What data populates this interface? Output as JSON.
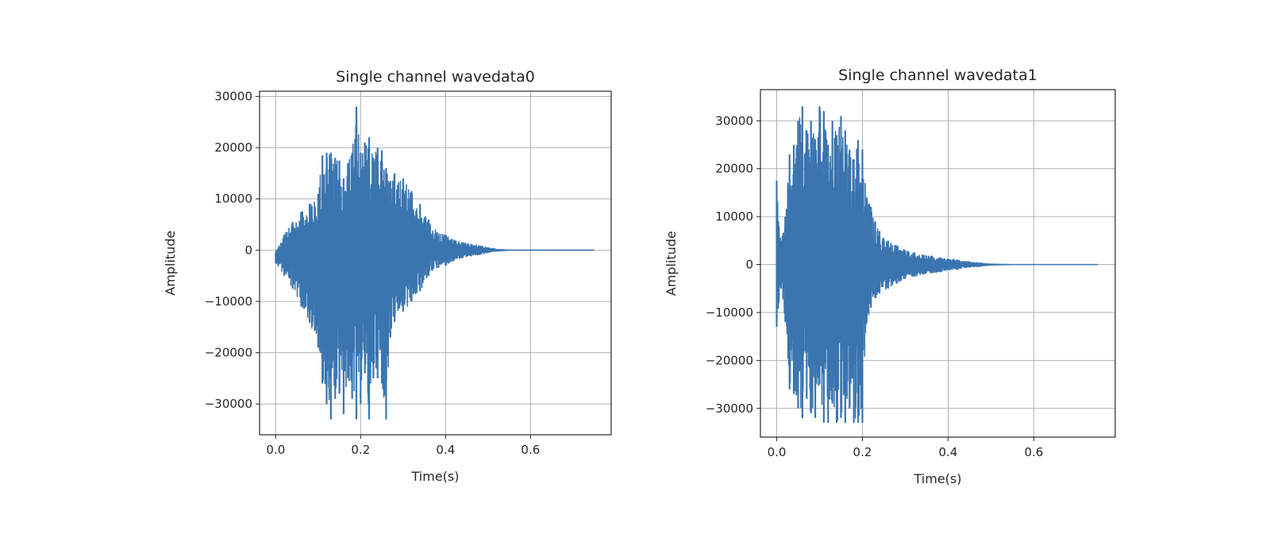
{
  "chart_data": [
    {
      "type": "line",
      "title": "Single channel wavedata0",
      "xlabel": "Time(s)",
      "ylabel": "Amplitude",
      "xlim": [
        -0.038,
        0.79
      ],
      "ylim": [
        -36000,
        31000
      ],
      "xticks": [
        0.0,
        0.2,
        0.4,
        0.6
      ],
      "xtick_labels": [
        "0.0",
        "0.2",
        "0.4",
        "0.6"
      ],
      "yticks": [
        -30000,
        -20000,
        -10000,
        0,
        10000,
        20000,
        30000
      ],
      "ytick_labels": [
        "−30000",
        "−20000",
        "−10000",
        "0",
        "10000",
        "20000",
        "30000"
      ],
      "grid": true,
      "color": "#3a75b0",
      "series": [
        {
          "x": [
            0.0,
            0.02,
            0.04,
            0.06,
            0.08,
            0.1,
            0.11,
            0.12,
            0.13,
            0.14,
            0.15,
            0.16,
            0.17,
            0.18,
            0.19,
            0.2,
            0.21,
            0.22,
            0.23,
            0.24,
            0.25,
            0.26,
            0.27,
            0.28,
            0.3,
            0.32,
            0.34,
            0.36,
            0.38,
            0.4,
            0.42,
            0.44,
            0.46,
            0.48,
            0.5,
            0.52,
            0.55,
            0.6,
            0.65,
            0.7,
            0.75
          ],
          "upper": [
            -500,
            3000,
            5500,
            7500,
            9000,
            11000,
            18500,
            19000,
            19000,
            18000,
            17500,
            14000,
            17000,
            19000,
            28000,
            19000,
            21000,
            22000,
            18000,
            20000,
            19500,
            16000,
            13500,
            15000,
            14000,
            11500,
            9000,
            6000,
            3500,
            3000,
            2000,
            1500,
            1200,
            900,
            500,
            200,
            0,
            0,
            0,
            0,
            0
          ],
          "lower": [
            -2500,
            -5000,
            -7500,
            -11000,
            -14000,
            -19000,
            -26000,
            -30000,
            -33000,
            -29000,
            -28000,
            -32000,
            -25000,
            -29000,
            -33000,
            -30000,
            -24000,
            -33000,
            -25000,
            -25000,
            -26000,
            -33000,
            -17000,
            -14000,
            -12000,
            -10000,
            -8000,
            -5000,
            -3500,
            -3000,
            -2000,
            -1500,
            -1200,
            -900,
            -500,
            -200,
            0,
            0,
            0,
            0,
            0
          ]
        }
      ]
    },
    {
      "type": "line",
      "title": "Single channel wavedata1",
      "xlabel": "Time(s)",
      "ylabel": "Amplitude",
      "xlim": [
        -0.038,
        0.79
      ],
      "ylim": [
        -36000,
        36500
      ],
      "xticks": [
        0.0,
        0.2,
        0.4,
        0.6
      ],
      "xtick_labels": [
        "0.0",
        "0.2",
        "0.4",
        "0.6"
      ],
      "yticks": [
        -30000,
        -20000,
        -10000,
        0,
        10000,
        20000,
        30000
      ],
      "ytick_labels": [
        "−30000",
        "−20000",
        "−10000",
        "0",
        "10000",
        "20000",
        "30000"
      ],
      "grid": true,
      "color": "#3a75b0",
      "series": [
        {
          "x": [
            0.0,
            0.005,
            0.01,
            0.02,
            0.03,
            0.04,
            0.05,
            0.06,
            0.07,
            0.08,
            0.09,
            0.1,
            0.11,
            0.12,
            0.13,
            0.14,
            0.15,
            0.16,
            0.17,
            0.18,
            0.19,
            0.2,
            0.21,
            0.22,
            0.23,
            0.24,
            0.26,
            0.28,
            0.3,
            0.32,
            0.34,
            0.36,
            0.38,
            0.4,
            0.42,
            0.44,
            0.46,
            0.48,
            0.5,
            0.55,
            0.6,
            0.7,
            0.75
          ],
          "upper": [
            17500,
            8000,
            5000,
            10000,
            23000,
            25000,
            30000,
            33000,
            28000,
            30000,
            26000,
            33000,
            32000,
            25000,
            30000,
            27000,
            31000,
            28000,
            24000,
            22000,
            26000,
            24000,
            14000,
            12000,
            9000,
            7000,
            5000,
            4000,
            3000,
            2500,
            2000,
            1800,
            1500,
            1200,
            1000,
            700,
            500,
            300,
            100,
            0,
            0,
            0,
            0
          ],
          "lower": [
            -13000,
            -8000,
            -5000,
            -12000,
            -26000,
            -27000,
            -30000,
            -32000,
            -28000,
            -31000,
            -32000,
            -25000,
            -33000,
            -33000,
            -29000,
            -33000,
            -32000,
            -33000,
            -30000,
            -33000,
            -33000,
            -33000,
            -12000,
            -9000,
            -7000,
            -6000,
            -5000,
            -4000,
            -3000,
            -2500,
            -2000,
            -1800,
            -1500,
            -1200,
            -1000,
            -700,
            -500,
            -300,
            -100,
            0,
            0,
            0,
            0
          ]
        }
      ]
    }
  ]
}
